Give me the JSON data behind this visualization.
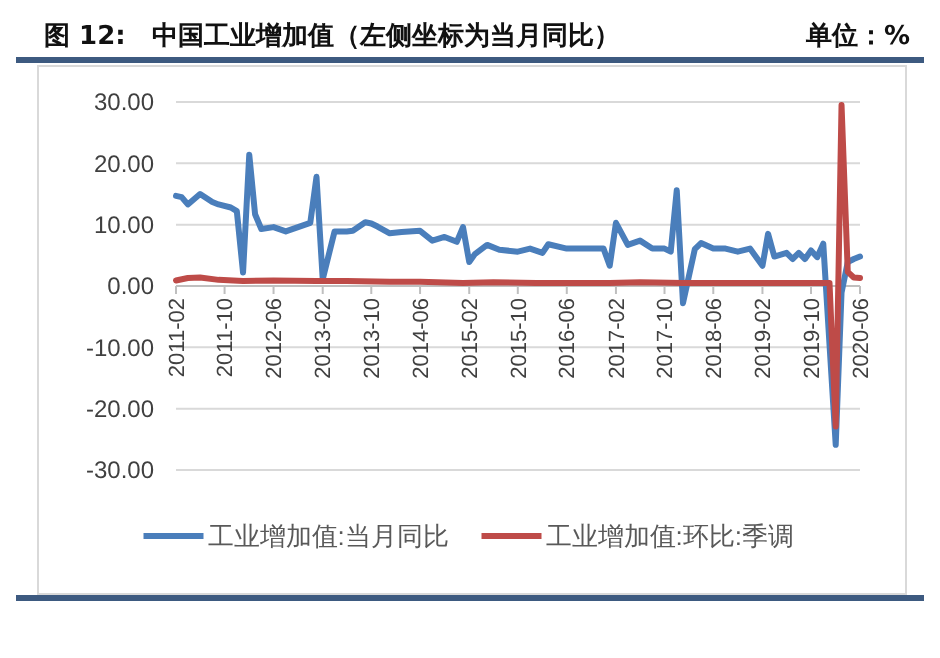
{
  "chart_data": {
    "type": "line",
    "title": "图 12:　中国工业增加值（左侧坐标为当月同比）",
    "subtitle": "单位：%",
    "xlim": [
      "2011-02",
      "2020-06"
    ],
    "xticks": [
      "2011-02",
      "2011-10",
      "2012-06",
      "2013-02",
      "2013-10",
      "2014-06",
      "2015-02",
      "2015-10",
      "2016-06",
      "2017-02",
      "2017-10",
      "2018-06",
      "2019-02",
      "2019-10",
      "2020-06"
    ],
    "ylim": [
      -30,
      30
    ],
    "yticks": [
      {
        "value": -30,
        "label": "-30.00"
      },
      {
        "value": -20,
        "label": "-20.00"
      },
      {
        "value": -10,
        "label": "-10.00"
      },
      {
        "value": 0,
        "label": "0.00"
      },
      {
        "value": 10,
        "label": "10.00"
      },
      {
        "value": 20,
        "label": "20.00"
      },
      {
        "value": 30,
        "label": "30.00"
      }
    ],
    "grid": "y",
    "legend": "bottom",
    "marker": "none",
    "line_style": "solid",
    "series": [
      {
        "name": "工业增加值:当月同比",
        "color": "#4a7ebb",
        "x": [
          "2011-02",
          "2011-03",
          "2011-04",
          "2011-06",
          "2011-08",
          "2011-09",
          "2011-11",
          "2011-12",
          "2012-01",
          "2012-02",
          "2012-03",
          "2012-04",
          "2012-06",
          "2012-08",
          "2012-10",
          "2012-12",
          "2013-01",
          "2013-02",
          "2013-04",
          "2013-06",
          "2013-07",
          "2013-09",
          "2013-10",
          "2013-11",
          "2014-01",
          "2014-03",
          "2014-06",
          "2014-08",
          "2014-10",
          "2014-12",
          "2015-01",
          "2015-02",
          "2015-03",
          "2015-05",
          "2015-07",
          "2015-10",
          "2015-12",
          "2016-02",
          "2016-03",
          "2016-06",
          "2016-09",
          "2016-12",
          "2017-01",
          "2017-02",
          "2017-04",
          "2017-06",
          "2017-08",
          "2017-10",
          "2017-11",
          "2017-12",
          "2018-01",
          "2018-03",
          "2018-04",
          "2018-06",
          "2018-08",
          "2018-10",
          "2018-12",
          "2019-02",
          "2019-03",
          "2019-04",
          "2019-06",
          "2019-07",
          "2019-08",
          "2019-09",
          "2019-10",
          "2019-11",
          "2019-12",
          "2020-02",
          "2020-03",
          "2020-04",
          "2020-05",
          "2020-06"
        ],
        "values": [
          14.7,
          14.5,
          13.3,
          15,
          13.7,
          13.3,
          12.8,
          12.2,
          2.2,
          21.4,
          11.7,
          9.3,
          9.6,
          8.9,
          9.6,
          10.3,
          17.8,
          1.1,
          8.9,
          8.9,
          9,
          10.4,
          10.2,
          9.7,
          8.6,
          8.8,
          9,
          7.4,
          8,
          7.2,
          9.6,
          3.9,
          5.2,
          6.7,
          5.9,
          5.6,
          6.1,
          5.4,
          6.8,
          6.1,
          6.1,
          6.1,
          3.3,
          10.3,
          6.7,
          7.4,
          6.1,
          6.1,
          5.6,
          15.6,
          -2.8,
          6,
          7,
          6.1,
          6.1,
          5.6,
          6.1,
          3.3,
          8.5,
          4.8,
          5.4,
          4.4,
          5.4,
          4.4,
          5.8,
          4.7,
          6.9,
          -25.9,
          -1.1,
          3.9,
          4.4,
          4.8
        ]
      },
      {
        "name": "工业增加值:环比:季调",
        "color": "#be4b48",
        "x": [
          "2011-02",
          "2011-04",
          "2011-06",
          "2011-09",
          "2012-01",
          "2012-06",
          "2013-01",
          "2013-06",
          "2014-01",
          "2014-06",
          "2015-01",
          "2015-06",
          "2016-01",
          "2016-06",
          "2017-01",
          "2017-06",
          "2018-01",
          "2018-06",
          "2019-01",
          "2019-06",
          "2020-01",
          "2020-02",
          "2020-03",
          "2020-04",
          "2020-05",
          "2020-06"
        ],
        "values": [
          0.9,
          1.3,
          1.4,
          1,
          0.8,
          0.9,
          0.8,
          0.8,
          0.7,
          0.7,
          0.5,
          0.6,
          0.5,
          0.5,
          0.5,
          0.6,
          0.5,
          0.5,
          0.5,
          0.5,
          0.5,
          -22.9,
          29.5,
          2.3,
          1.4,
          1.3
        ]
      }
    ]
  }
}
